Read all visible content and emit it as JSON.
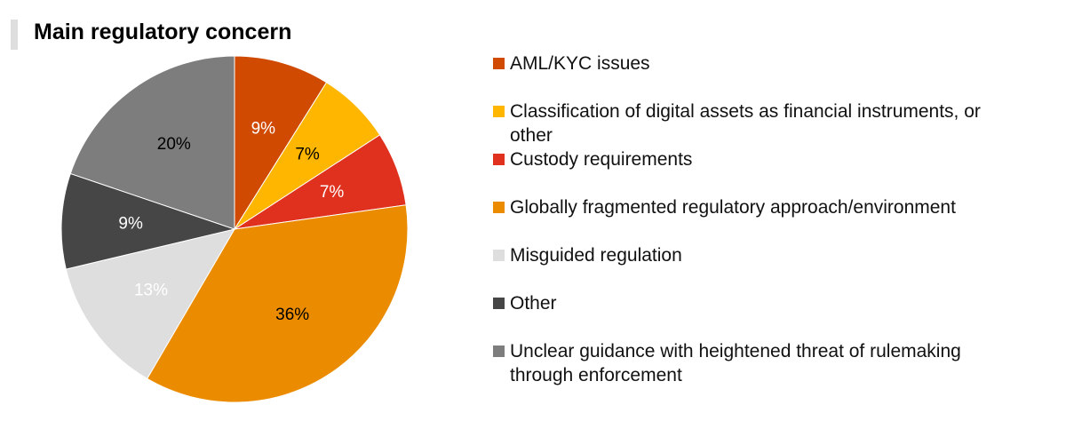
{
  "chart_data": {
    "type": "pie",
    "title": "Main regulatory concern",
    "categories": [
      "AML/KYC issues",
      "Classification of digital assets as financial instruments, or other",
      "Custody requirements",
      "Globally fragmented regulatory approach/environment",
      "Misguided regulation",
      "Other",
      "Unclear guidance with heightened threat of rulemaking through enforcement"
    ],
    "values": [
      9,
      7,
      7,
      36,
      13,
      9,
      20
    ],
    "value_labels": [
      "9%",
      "7%",
      "7%",
      "36%",
      "13%",
      "9%",
      "20%"
    ],
    "colors": [
      "#d04a02",
      "#ffb600",
      "#e0301e",
      "#eb8c00",
      "#dedede",
      "#464646",
      "#7d7d7d"
    ],
    "legend": "right"
  }
}
